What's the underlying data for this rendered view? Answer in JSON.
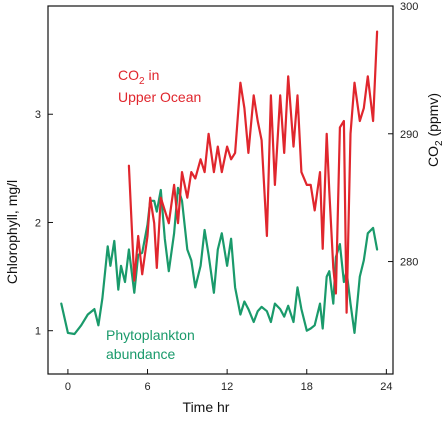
{
  "chart_data": {
    "type": "line",
    "x_axis": {
      "label": "Time hr",
      "range": [
        -1.5,
        24.5
      ],
      "ticks": [
        0,
        6,
        12,
        18,
        24
      ]
    },
    "y_left": {
      "label": "Chlorophyll, mg/l",
      "range": [
        0.6,
        4.0
      ],
      "ticks": [
        1,
        2,
        3
      ],
      "color": "#1a9a6b"
    },
    "y_right": {
      "label_main": "CO",
      "label_sub": "2",
      "label_unit": "(ppmv)",
      "range": [
        271.2,
        300
      ],
      "ticks": [
        280,
        290,
        300
      ],
      "color": "#e0262d"
    },
    "series": [
      {
        "axis": "left",
        "color": "#1a9a6b",
        "annotation_line1": "Phytoplankton",
        "annotation_line2": "abundance",
        "x": [
          -0.5,
          0,
          0.5,
          1,
          1.5,
          2,
          2.3,
          2.6,
          3,
          3.2,
          3.5,
          3.8,
          4,
          4.3,
          4.6,
          5,
          5.3,
          5.6,
          6,
          6.2,
          6.5,
          6.7,
          7,
          7.3,
          7.6,
          8,
          8.3,
          8.6,
          9,
          9.3,
          9.6,
          10,
          10.3,
          10.6,
          11,
          11.3,
          11.6,
          12,
          12.3,
          12.6,
          13,
          13.3,
          13.6,
          14,
          14.3,
          14.6,
          15,
          15.3,
          15.6,
          16,
          16.3,
          16.6,
          17,
          17.3,
          17.6,
          18,
          18.3,
          18.6,
          19,
          19.2,
          19.5,
          19.7,
          20,
          20.2,
          20.5,
          20.8,
          21,
          21.3,
          21.6,
          22,
          22.3,
          22.6,
          23,
          23.3
        ],
        "y": [
          1.25,
          0.98,
          0.97,
          1.05,
          1.15,
          1.2,
          1.05,
          1.3,
          1.78,
          1.6,
          1.83,
          1.38,
          1.6,
          1.45,
          1.75,
          1.35,
          1.7,
          1.72,
          1.98,
          2.2,
          2.2,
          2.1,
          2.3,
          1.85,
          1.55,
          1.9,
          2.32,
          2.2,
          1.75,
          1.65,
          1.4,
          1.6,
          1.93,
          1.7,
          1.35,
          1.75,
          1.9,
          1.6,
          1.85,
          1.4,
          1.15,
          1.27,
          1.2,
          1.08,
          1.18,
          1.22,
          1.18,
          1.08,
          1.25,
          1.2,
          1.13,
          1.23,
          1.08,
          1.4,
          1.2,
          1.0,
          1.02,
          1.05,
          1.25,
          1.02,
          1.5,
          1.55,
          1.25,
          1.68,
          1.8,
          1.45,
          1.55,
          1.25,
          0.98,
          1.5,
          1.65,
          1.9,
          1.95,
          1.75
        ]
      },
      {
        "axis": "right",
        "color": "#e0262d",
        "annotation_line1_main": "CO",
        "annotation_line1_sub": "2",
        "annotation_line1_rest": " in",
        "annotation_line2": "Upper Ocean",
        "x": [
          4.6,
          5,
          5.3,
          5.6,
          6,
          6.2,
          6.5,
          6.7,
          7,
          7.3,
          7.6,
          8,
          8.3,
          8.6,
          9,
          9.3,
          9.6,
          10,
          10.3,
          10.6,
          11,
          11.3,
          11.6,
          12,
          12.3,
          12.6,
          13,
          13.3,
          13.6,
          14,
          14.3,
          14.6,
          15,
          15.3,
          15.6,
          16,
          16.3,
          16.6,
          17,
          17.3,
          17.6,
          18,
          18.3,
          18.6,
          19,
          19.2,
          19.5,
          19.7,
          20,
          20.2,
          20.5,
          20.8,
          21,
          21.3,
          21.6,
          22,
          22.3,
          22.6,
          23,
          23.3
        ],
        "y": [
          287.5,
          278.5,
          282,
          279,
          282,
          285,
          283,
          279.5,
          285,
          284,
          283,
          286,
          283,
          287,
          285,
          287,
          286.5,
          288,
          287,
          290,
          287,
          289,
          287,
          289,
          288,
          288.5,
          294,
          292,
          288.5,
          293,
          291,
          289.5,
          282,
          293,
          286,
          293,
          288.5,
          294.5,
          289,
          293,
          287,
          286,
          286,
          284,
          287,
          281,
          290,
          285.5,
          279.5,
          277.5,
          290.5,
          291,
          276,
          290,
          294,
          291,
          292,
          294.5,
          291,
          298
        ]
      }
    ]
  }
}
